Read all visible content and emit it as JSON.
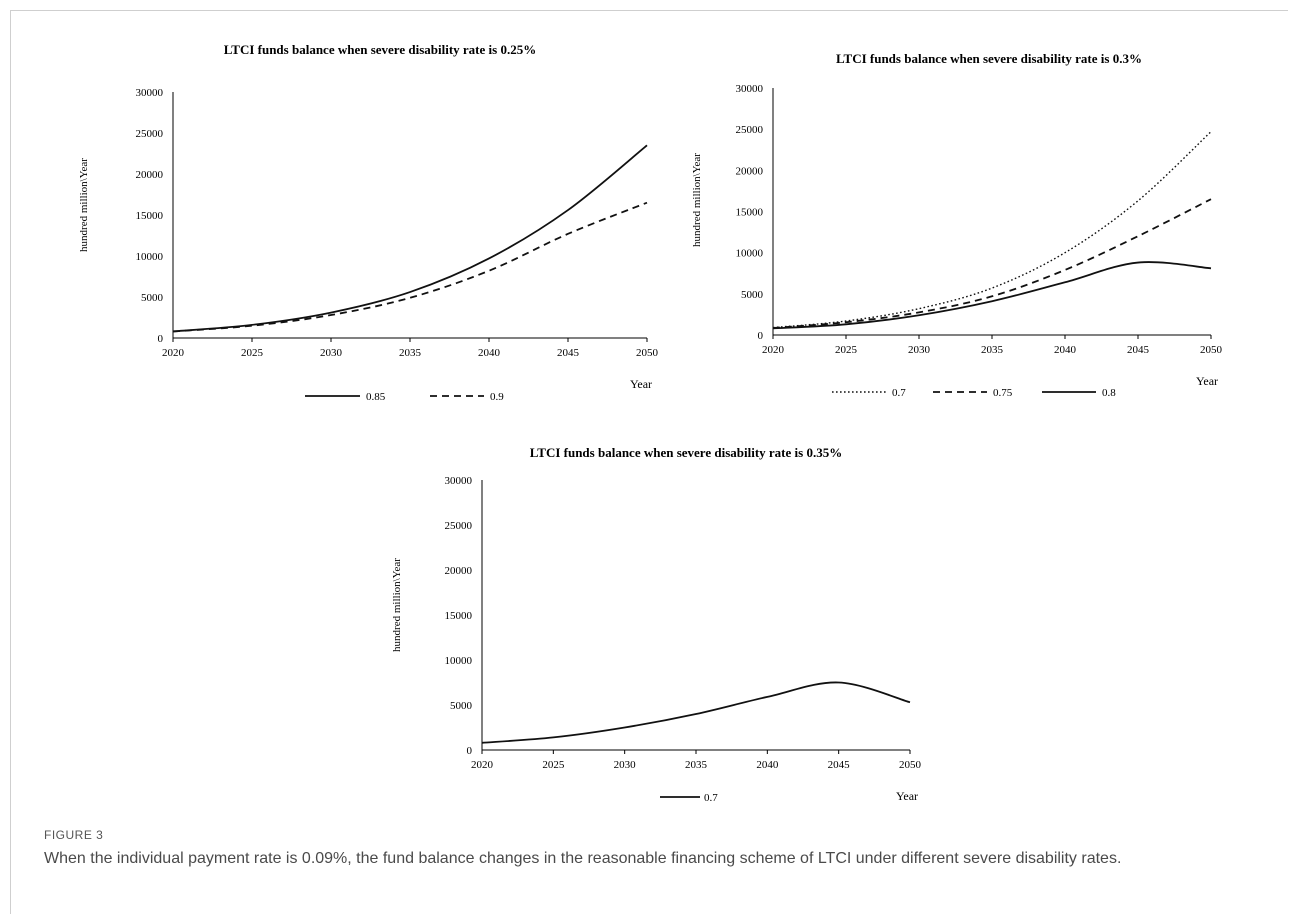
{
  "figure": {
    "label": "FIGURE 3",
    "caption": "When the individual payment rate is 0.09%, the fund balance changes in the reasonable financing scheme of LTCI under different severe disability rates."
  },
  "chart_data": [
    {
      "type": "line",
      "title": "LTCI funds balance when severe disability rate is 0.25%",
      "xlabel": "Year",
      "ylabel": "hundred million\\Year",
      "xlim": [
        2020,
        2050
      ],
      "ylim": [
        0,
        30000
      ],
      "x_ticks": [
        2020,
        2025,
        2030,
        2035,
        2040,
        2045,
        2050
      ],
      "y_ticks": [
        0,
        5000,
        10000,
        15000,
        20000,
        25000,
        30000
      ],
      "legend_position": "bottom",
      "grid": false,
      "x": [
        2020,
        2025,
        2030,
        2035,
        2040,
        2045,
        2050
      ],
      "series": [
        {
          "name": "0.85",
          "dash": "solid",
          "values": [
            800,
            1600,
            3100,
            5600,
            9700,
            15600,
            23500
          ]
        },
        {
          "name": "0.9",
          "dash": "dashed",
          "values": [
            800,
            1500,
            2800,
            4900,
            8200,
            12700,
            16500
          ]
        }
      ]
    },
    {
      "type": "line",
      "title": "LTCI funds balance when severe disability rate is 0.3%",
      "xlabel": "Year",
      "ylabel": "hundred million\\Year",
      "xlim": [
        2020,
        2050
      ],
      "ylim": [
        0,
        30000
      ],
      "x_ticks": [
        2020,
        2025,
        2030,
        2035,
        2040,
        2045,
        2050
      ],
      "y_ticks": [
        0,
        5000,
        10000,
        15000,
        20000,
        25000,
        30000
      ],
      "legend_position": "bottom",
      "grid": false,
      "x": [
        2020,
        2025,
        2030,
        2035,
        2040,
        2045,
        2050
      ],
      "series": [
        {
          "name": "0.7",
          "dash": "dotted",
          "values": [
            900,
            1700,
            3200,
            5700,
            10000,
            16300,
            24700
          ]
        },
        {
          "name": "0.75",
          "dash": "dashed",
          "values": [
            850,
            1550,
            2750,
            4700,
            7900,
            12000,
            16500
          ]
        },
        {
          "name": "0.8",
          "dash": "solid",
          "values": [
            800,
            1300,
            2400,
            4100,
            6400,
            8800,
            8100
          ]
        }
      ]
    },
    {
      "type": "line",
      "title": "LTCI funds balance when severe disability rate is 0.35%",
      "xlabel": "Year",
      "ylabel": "hundred million\\Year",
      "xlim": [
        2020,
        2050
      ],
      "ylim": [
        0,
        30000
      ],
      "x_ticks": [
        2020,
        2025,
        2030,
        2035,
        2040,
        2045,
        2050
      ],
      "y_ticks": [
        0,
        5000,
        10000,
        15000,
        20000,
        25000,
        30000
      ],
      "legend_position": "bottom",
      "grid": false,
      "x": [
        2020,
        2025,
        2030,
        2035,
        2040,
        2045,
        2050
      ],
      "series": [
        {
          "name": "0.7",
          "dash": "solid",
          "values": [
            800,
            1400,
            2500,
            4000,
            5900,
            7500,
            5300
          ]
        }
      ]
    }
  ]
}
